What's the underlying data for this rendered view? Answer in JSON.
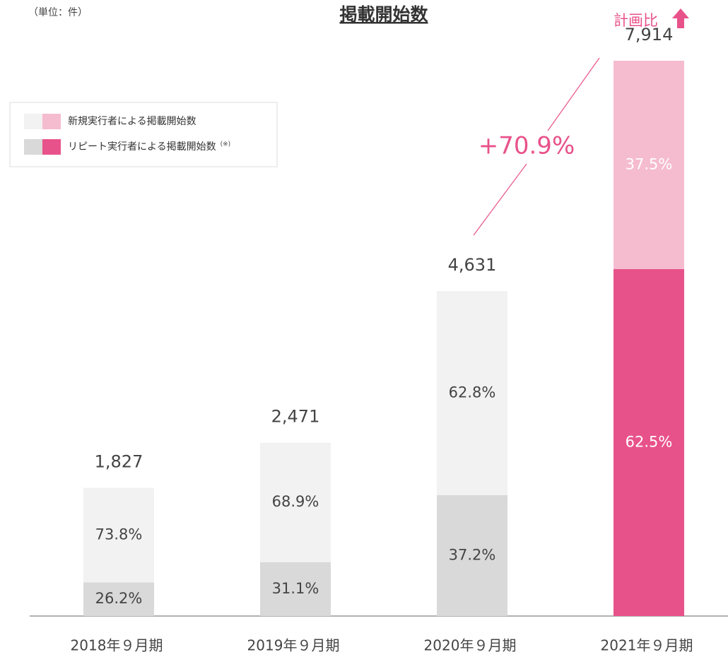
{
  "chart_data": {
    "type": "stacked_bar_percent",
    "title": "掲載開始数",
    "unit_label": "（単位：件）",
    "plan_label": "計画比",
    "growth_label": "+70.9%",
    "legend_note": "(※)",
    "categories": [
      "2018年９月期",
      "2019年９月期",
      "2020年９月期",
      "2021年９月期"
    ],
    "totals": {
      "values": [
        1827,
        2471,
        4631,
        7914
      ],
      "value_labels": [
        "1,827",
        "2,471",
        "4,631",
        "7,914"
      ]
    },
    "series": [
      {
        "name": "リピート実行者による掲載開始数",
        "colors": [
          "#d9d9d9",
          "#d9d9d9",
          "#d9d9d9",
          "#e8528a"
        ],
        "values": [
          26.2,
          31.1,
          37.2,
          62.5
        ],
        "value_labels": [
          "26.2%",
          "31.1%",
          "37.2%",
          "62.5%"
        ]
      },
      {
        "name": "新規実行者による掲載開始数",
        "colors": [
          "#f2f2f2",
          "#f2f2f2",
          "#f2f2f2",
          "#f5bcd0"
        ],
        "values": [
          73.8,
          68.9,
          62.8,
          37.5
        ],
        "value_labels": [
          "73.8%",
          "68.9%",
          "62.8%",
          "37.5%"
        ]
      }
    ]
  }
}
